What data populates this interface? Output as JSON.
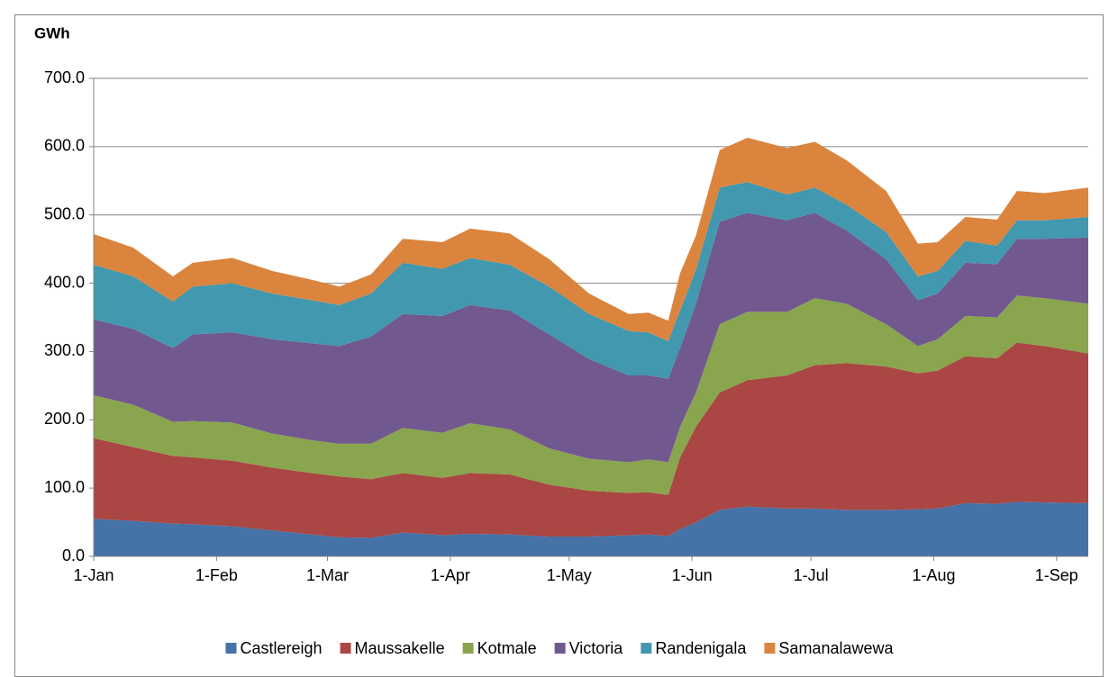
{
  "chart_data": {
    "type": "stacked-area",
    "y_label": "GWh",
    "x": [
      0,
      10,
      20,
      25,
      35,
      45,
      55,
      62,
      70,
      78,
      88,
      95,
      105,
      115,
      125,
      135,
      140,
      145,
      148,
      152,
      158,
      165,
      175,
      182,
      190,
      200,
      208,
      213,
      220,
      228,
      233,
      240,
      251
    ],
    "xlim": [
      0,
      251
    ],
    "xticks": [
      {
        "value": 0,
        "label": "1-Jan"
      },
      {
        "value": 31,
        "label": "1-Feb"
      },
      {
        "value": 59,
        "label": "1-Mar"
      },
      {
        "value": 90,
        "label": "1-Apr"
      },
      {
        "value": 120,
        "label": "1-May"
      },
      {
        "value": 151,
        "label": "1-Jun"
      },
      {
        "value": 181,
        "label": "1-Jul"
      },
      {
        "value": 212,
        "label": "1-Aug"
      },
      {
        "value": 243,
        "label": "1-Sep"
      }
    ],
    "ylim": [
      0,
      700
    ],
    "yticks": [
      {
        "value": 0,
        "label": "0.0"
      },
      {
        "value": 100,
        "label": "100.0"
      },
      {
        "value": 200,
        "label": "200.0"
      },
      {
        "value": 300,
        "label": "300.0"
      },
      {
        "value": 400,
        "label": "400.0"
      },
      {
        "value": 500,
        "label": "500.0"
      },
      {
        "value": 600,
        "label": "600.0"
      },
      {
        "value": 700,
        "label": "700.0"
      }
    ],
    "grid": true,
    "legend": "bottom",
    "series": [
      {
        "name": "Castlereigh",
        "color": "#4572a7",
        "values": [
          55,
          52,
          48,
          47,
          44,
          38,
          32,
          28,
          27,
          35,
          31,
          33,
          32,
          29,
          29,
          31,
          32,
          30,
          40,
          50,
          68,
          73,
          70,
          70,
          68,
          68,
          69,
          70,
          78,
          77,
          80,
          79,
          78
        ]
      },
      {
        "name": "Maussakelle",
        "color": "#aa4643",
        "values": [
          118,
          108,
          99,
          98,
          96,
          92,
          90,
          89,
          86,
          87,
          84,
          89,
          88,
          76,
          67,
          62,
          62,
          60,
          105,
          140,
          172,
          185,
          195,
          210,
          215,
          210,
          199,
          202,
          215,
          213,
          233,
          229,
          219
        ]
      },
      {
        "name": "Kotmale",
        "color": "#89a54e",
        "values": [
          63,
          62,
          50,
          53,
          56,
          50,
          48,
          48,
          52,
          66,
          66,
          73,
          66,
          53,
          47,
          45,
          48,
          48,
          45,
          50,
          100,
          100,
          93,
          98,
          87,
          62,
          40,
          46,
          59,
          60,
          69,
          70,
          73
        ]
      },
      {
        "name": "Victoria",
        "color": "#71588f",
        "values": [
          111,
          111,
          108,
          127,
          132,
          138,
          142,
          143,
          157,
          167,
          171,
          173,
          174,
          167,
          146,
          127,
          123,
          122,
          115,
          130,
          150,
          145,
          134,
          125,
          107,
          95,
          67,
          67,
          78,
          78,
          83,
          87,
          97
        ]
      },
      {
        "name": "Randenigala",
        "color": "#4198af",
        "values": [
          80,
          77,
          68,
          70,
          72,
          67,
          63,
          60,
          63,
          75,
          69,
          69,
          67,
          70,
          66,
          65,
          63,
          55,
          55,
          50,
          50,
          45,
          38,
          37,
          38,
          40,
          35,
          33,
          32,
          27,
          27,
          27,
          30
        ]
      },
      {
        "name": "Samanalawewa",
        "color": "#db843d",
        "values": [
          45,
          42,
          37,
          35,
          37,
          33,
          30,
          27,
          28,
          35,
          39,
          43,
          46,
          40,
          30,
          25,
          29,
          30,
          55,
          50,
          55,
          65,
          68,
          67,
          65,
          60,
          48,
          42,
          35,
          38,
          43,
          40,
          43
        ]
      }
    ]
  }
}
